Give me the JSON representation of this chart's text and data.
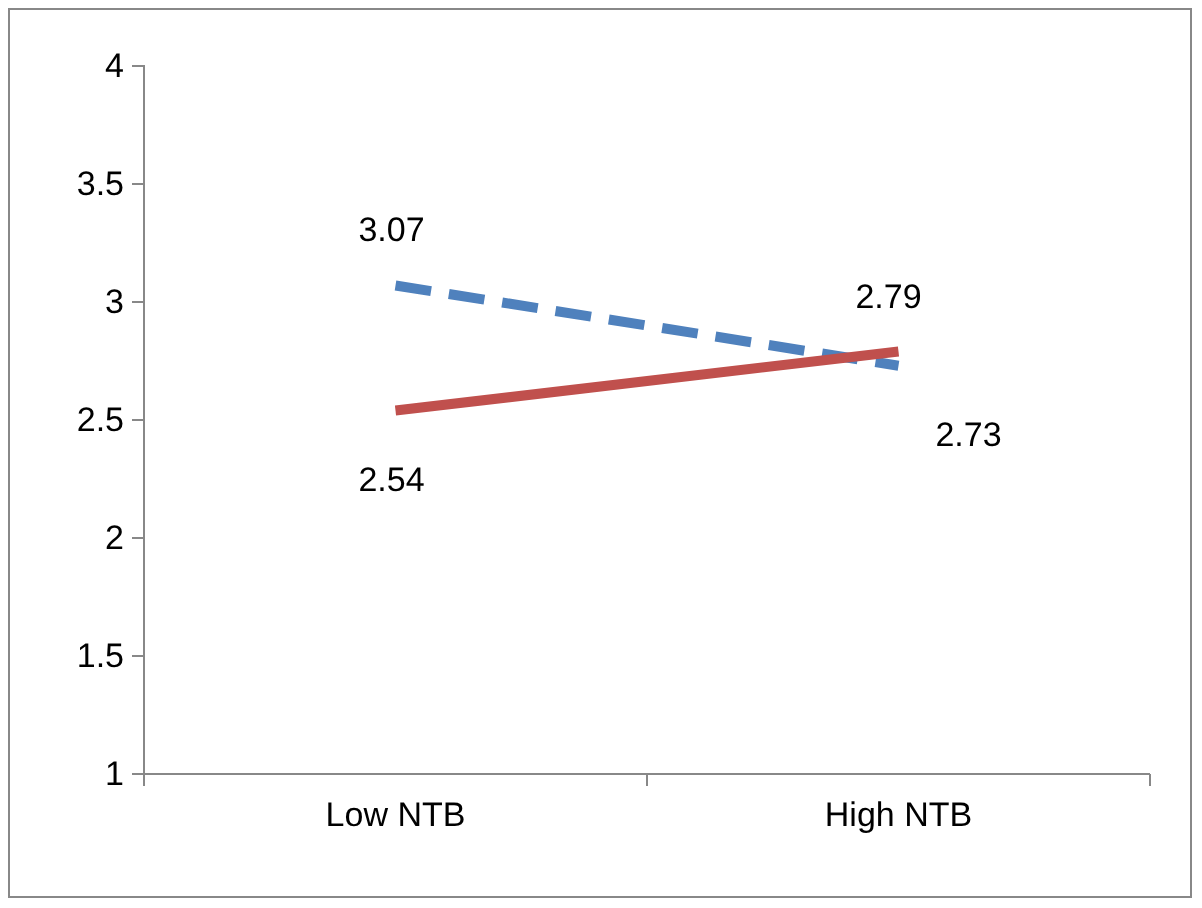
{
  "chart_data": {
    "type": "line",
    "categories": [
      "Low NTB",
      "High NTB"
    ],
    "series": [
      {
        "color": "#4f81bd",
        "values": [
          3.07,
          2.73
        ],
        "line_style": "dashed"
      },
      {
        "color": "#c0504d",
        "values": [
          2.54,
          2.79
        ],
        "line_style": "solid"
      }
    ],
    "ylim": [
      1,
      4
    ],
    "yticks": [
      1,
      1.5,
      2,
      2.5,
      3,
      3.5,
      4
    ],
    "grid": false,
    "marker": "none",
    "data_labels": true
  }
}
